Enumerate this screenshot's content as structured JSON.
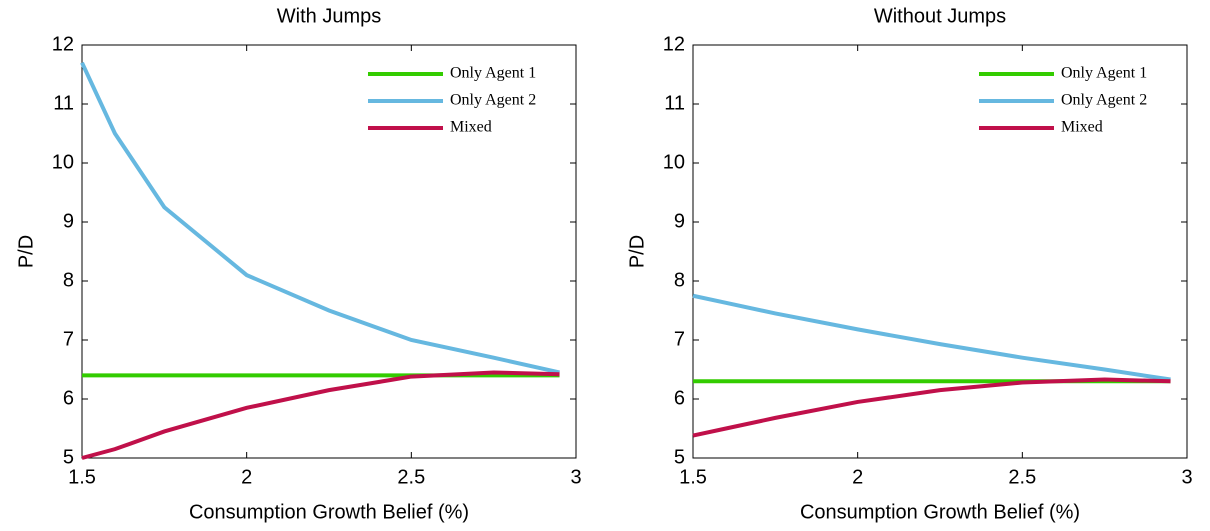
{
  "chart_data": [
    {
      "type": "line",
      "title": "With Jumps",
      "x_label": "Consumption Growth Belief (%)",
      "y_label": "P/D",
      "x": [
        1.5,
        1.6,
        1.75,
        2,
        2.25,
        2.5,
        2.75,
        2.95
      ],
      "series": [
        {
          "name": "Only Agent 1",
          "color": "#33cc00",
          "values": [
            6.4,
            6.4,
            6.4,
            6.4,
            6.4,
            6.4,
            6.4,
            6.4
          ]
        },
        {
          "name": "Only Agent 2",
          "color": "#66b8e0",
          "values": [
            11.7,
            10.5,
            9.25,
            8.1,
            7.5,
            7.0,
            6.7,
            6.45
          ]
        },
        {
          "name": "Mixed",
          "color": "#c0104a",
          "values": [
            5.0,
            5.15,
            5.45,
            5.85,
            6.15,
            6.38,
            6.45,
            6.42
          ]
        }
      ],
      "xlim": [
        1.5,
        3
      ],
      "xticks": [
        1.5,
        2,
        2.5,
        3
      ],
      "ylim": [
        5,
        12
      ],
      "yticks": [
        5,
        6,
        7,
        8,
        9,
        10,
        11,
        12
      ],
      "legend": "upper right"
    },
    {
      "type": "line",
      "title": "Without Jumps",
      "x_label": "Consumption Growth Belief (%)",
      "y_label": "P/D",
      "x": [
        1.5,
        1.6,
        1.75,
        2,
        2.25,
        2.5,
        2.75,
        2.95
      ],
      "series": [
        {
          "name": "Only Agent 1",
          "color": "#33cc00",
          "values": [
            6.3,
            6.3,
            6.3,
            6.3,
            6.3,
            6.3,
            6.3,
            6.3
          ]
        },
        {
          "name": "Only Agent 2",
          "color": "#66b8e0",
          "values": [
            7.75,
            7.63,
            7.45,
            7.18,
            6.93,
            6.7,
            6.5,
            6.33
          ]
        },
        {
          "name": "Mixed",
          "color": "#c0104a",
          "values": [
            5.38,
            5.5,
            5.68,
            5.95,
            6.15,
            6.28,
            6.33,
            6.3
          ]
        }
      ],
      "xlim": [
        1.5,
        3
      ],
      "xticks": [
        1.5,
        2,
        2.5,
        3
      ],
      "ylim": [
        5,
        12
      ],
      "yticks": [
        5,
        6,
        7,
        8,
        9,
        10,
        11,
        12
      ],
      "legend": "upper right"
    }
  ]
}
